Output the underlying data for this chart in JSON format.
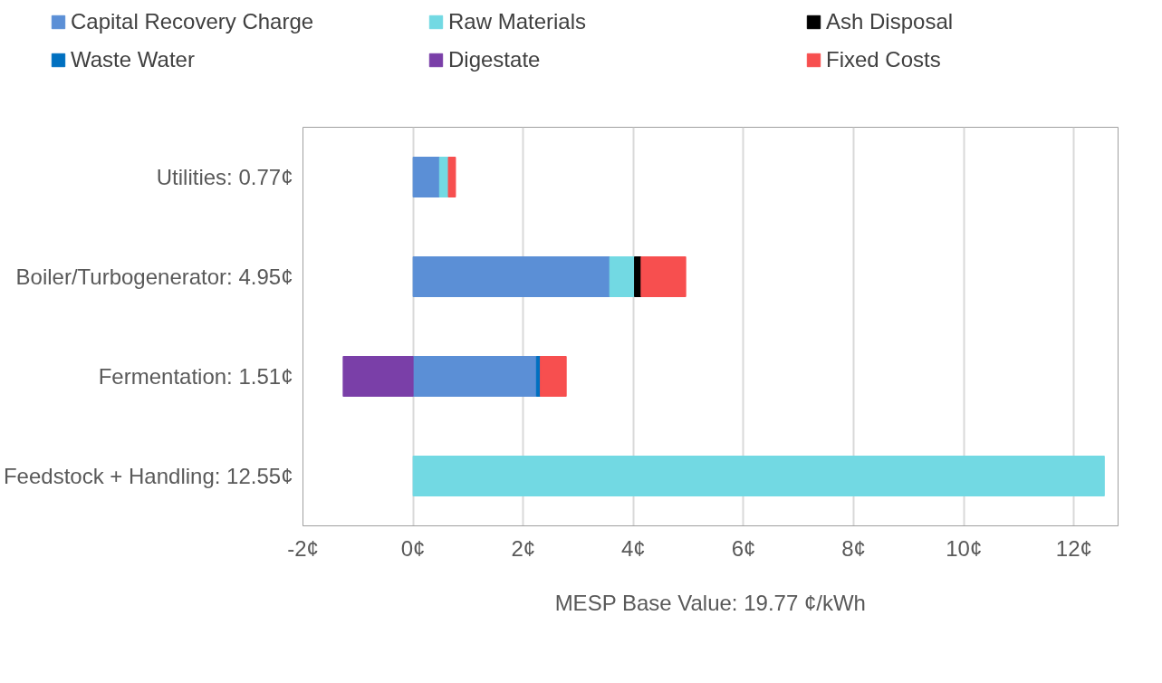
{
  "chart_data": {
    "type": "bar",
    "orientation": "horizontal",
    "stacked": true,
    "categories": [
      "Utilities: 0.77¢",
      "Boiler/Turbogenerator: 4.95¢",
      "Fermentation: 1.51¢",
      "Feedstock + Handling: 12.55¢"
    ],
    "series": [
      {
        "name": "Capital Recovery Charge",
        "color": "#5b8fd6",
        "values": [
          0.48,
          3.57,
          2.24,
          null
        ]
      },
      {
        "name": "Raw Materials",
        "color": "#72d9e3",
        "values": [
          0.16,
          0.45,
          null,
          12.55
        ]
      },
      {
        "name": "Ash Disposal",
        "color": "#000000",
        "values": [
          null,
          0.12,
          null,
          null
        ]
      },
      {
        "name": "Waste Water",
        "color": "#0070c0",
        "values": [
          null,
          null,
          0.07,
          null
        ]
      },
      {
        "name": "Digestate",
        "color": "#7a3fa8",
        "values": [
          null,
          null,
          -1.27,
          null
        ]
      },
      {
        "name": "Fixed Costs",
        "color": "#f74f4f",
        "values": [
          0.13,
          0.81,
          0.47,
          null
        ]
      }
    ],
    "xlabel": "MESP Base Value: 19.77 ¢/kWh",
    "xlim": [
      -2,
      12.8
    ],
    "xticks": [
      {
        "value": -2,
        "label": "-2¢"
      },
      {
        "value": 0,
        "label": "0¢"
      },
      {
        "value": 2,
        "label": "2¢"
      },
      {
        "value": 4,
        "label": "4¢"
      },
      {
        "value": 6,
        "label": "6¢"
      },
      {
        "value": 8,
        "label": "8¢"
      },
      {
        "value": 10,
        "label": "10¢"
      },
      {
        "value": 12,
        "label": "12¢"
      }
    ],
    "grid": "x",
    "legend": "top"
  }
}
